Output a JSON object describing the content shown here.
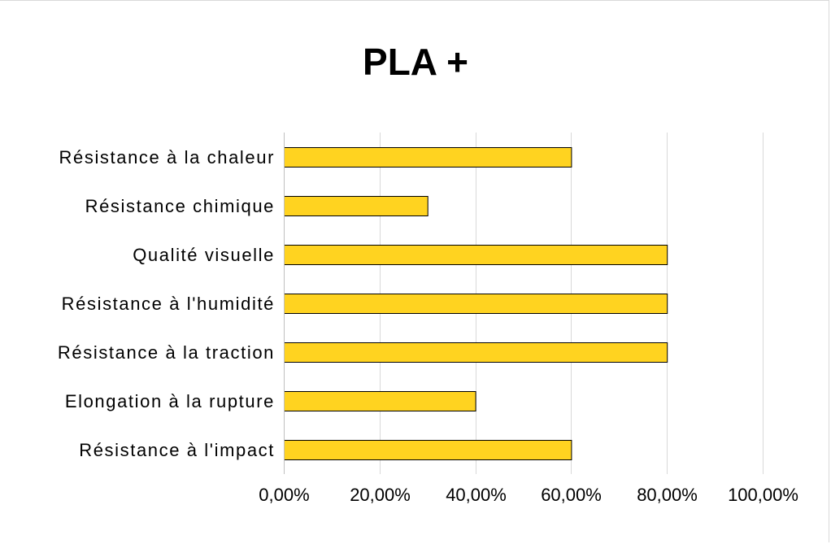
{
  "chart_data": {
    "type": "bar",
    "orientation": "horizontal",
    "title": "PLA +",
    "categories": [
      "Résistance à la chaleur",
      "Résistance chimique",
      "Qualité visuelle",
      "Résistance à l'humidité",
      "Résistance à la traction",
      "Elongation à la rupture",
      "Résistance à l'impact"
    ],
    "values": [
      0.6,
      0.3,
      0.8,
      0.8,
      0.8,
      0.4,
      0.6
    ],
    "xlim": [
      0,
      1
    ],
    "x_ticks": [
      0,
      0.2,
      0.4,
      0.6,
      0.8,
      1.0
    ],
    "x_tick_labels": [
      "0,00%",
      "20,00%",
      "40,00%",
      "60,00%",
      "80,00%",
      "100,00%"
    ],
    "xlabel": "",
    "ylabel": "",
    "grid": "vertical",
    "legend": "none",
    "colors": {
      "bar_fill": "#FFD320",
      "bar_stroke": "#000000",
      "grid": "#d9d9d9",
      "axis": "#bfbfbf"
    }
  }
}
